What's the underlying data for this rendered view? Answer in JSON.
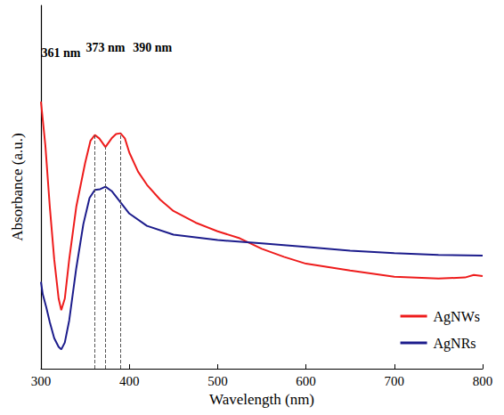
{
  "chart_data": {
    "type": "line",
    "x_label": "Wavelength (nm)",
    "y_label": "Absorbance (a.u.)",
    "xlim": [
      300,
      800
    ],
    "xticks": [
      300,
      400,
      500,
      600,
      700,
      800
    ],
    "ylim": [
      0,
      100
    ],
    "yticks": [],
    "tick_labels": "x",
    "grid": false,
    "legend": "lower right",
    "series": [
      {
        "name": "AgNWs",
        "color": "#ee1c1c",
        "line_style": "solid",
        "x": [
          300,
          305,
          310,
          315,
          320,
          323,
          327,
          332,
          340,
          350,
          356,
          361,
          366,
          373,
          380,
          385,
          390,
          395,
          400,
          410,
          420,
          435,
          450,
          475,
          500,
          525,
          550,
          575,
          600,
          650,
          700,
          750,
          780,
          790,
          800
        ],
        "values": [
          73.5,
          61.4,
          44.6,
          30.1,
          19.3,
          16.1,
          19.3,
          30.1,
          44.6,
          56.6,
          62.7,
          64.3,
          63.4,
          61.0,
          63.4,
          64.6,
          64.8,
          63.4,
          59.5,
          54.2,
          50.6,
          46.5,
          43.4,
          40.2,
          37.8,
          35.9,
          33.0,
          30.8,
          28.9,
          27.0,
          25.3,
          24.8,
          25.1,
          25.8,
          25.5
        ]
      },
      {
        "name": "AgNRs",
        "color": "#1c1c8c",
        "line_style": "solid",
        "x": [
          300,
          302,
          306,
          310,
          315,
          320,
          323,
          327,
          332,
          340,
          348,
          355,
          361,
          367,
          373,
          380,
          390,
          400,
          420,
          450,
          500,
          550,
          600,
          650,
          700,
          750,
          800
        ],
        "values": [
          23.9,
          20.5,
          16.9,
          12.8,
          8.4,
          6.0,
          5.3,
          7.2,
          13.3,
          27.7,
          39.8,
          47.0,
          49.2,
          49.4,
          50.1,
          48.9,
          45.8,
          42.7,
          39.3,
          36.9,
          35.4,
          34.5,
          33.5,
          32.5,
          31.8,
          31.3,
          31.1
        ]
      }
    ],
    "annotations": [
      {
        "x": 361,
        "label": "361 nm"
      },
      {
        "x": 373,
        "label": "373 nm"
      },
      {
        "x": 390,
        "label": "390 nm"
      }
    ]
  }
}
